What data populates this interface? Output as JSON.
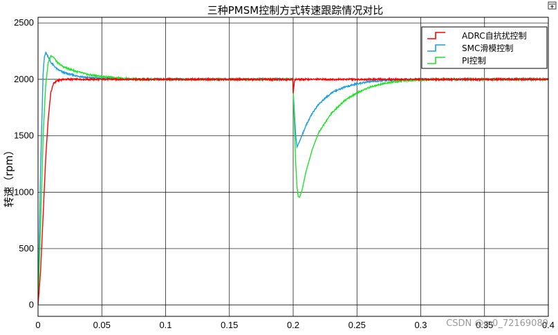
{
  "chart_data": {
    "type": "line",
    "title": "三种PMSM控制方式转速跟踪情况对比",
    "xlabel": "",
    "ylabel": "转速（rpm）",
    "xlim": [
      0,
      0.4
    ],
    "ylim": [
      -100,
      2550
    ],
    "xticks": [
      0,
      0.05,
      0.1,
      0.15,
      0.2,
      0.25,
      0.3,
      0.35,
      0.4
    ],
    "xtick_labels": [
      "0",
      "0.05",
      "0.1",
      "0.15",
      "0.2",
      "0.25",
      "0.3",
      "0.35",
      "0.4"
    ],
    "yticks": [
      0,
      500,
      1000,
      1500,
      2000,
      2500
    ],
    "ytick_labels": [
      "0",
      "500",
      "1000",
      "1500",
      "2000",
      "2500"
    ],
    "grid": true,
    "legend_position": "top-right",
    "series": [
      {
        "name": "ADRC自抗扰控制",
        "color": "#ff0000",
        "points": [
          [
            0,
            0
          ],
          [
            0.002,
            300
          ],
          [
            0.004,
            800
          ],
          [
            0.006,
            1300
          ],
          [
            0.008,
            1650
          ],
          [
            0.01,
            1880
          ],
          [
            0.012,
            1960
          ],
          [
            0.015,
            1990
          ],
          [
            0.02,
            2000
          ],
          [
            0.1999,
            2000
          ],
          [
            0.2,
            1870
          ],
          [
            0.2005,
            1940
          ],
          [
            0.201,
            1990
          ],
          [
            0.202,
            2000
          ],
          [
            0.4,
            2000
          ]
        ]
      },
      {
        "name": "SMC滑模控制",
        "color": "#1a9fe0",
        "points": [
          [
            0,
            0
          ],
          [
            0.002,
            1200
          ],
          [
            0.004,
            2050
          ],
          [
            0.005,
            2200
          ],
          [
            0.006,
            2240
          ],
          [
            0.008,
            2200
          ],
          [
            0.01,
            2150
          ],
          [
            0.015,
            2090
          ],
          [
            0.02,
            2060
          ],
          [
            0.03,
            2030
          ],
          [
            0.04,
            2015
          ],
          [
            0.05,
            2010
          ],
          [
            0.06,
            2005
          ],
          [
            0.07,
            2000
          ],
          [
            0.1999,
            2000
          ],
          [
            0.2,
            1900
          ],
          [
            0.201,
            1700
          ],
          [
            0.202,
            1500
          ],
          [
            0.203,
            1400
          ],
          [
            0.205,
            1450
          ],
          [
            0.21,
            1590
          ],
          [
            0.215,
            1700
          ],
          [
            0.22,
            1780
          ],
          [
            0.23,
            1880
          ],
          [
            0.24,
            1930
          ],
          [
            0.25,
            1960
          ],
          [
            0.26,
            1980
          ],
          [
            0.27,
            1990
          ],
          [
            0.28,
            1995
          ],
          [
            0.29,
            2000
          ],
          [
            0.4,
            2000
          ]
        ]
      },
      {
        "name": "PI控制",
        "color": "#22e12a",
        "points": [
          [
            0,
            0
          ],
          [
            0.002,
            700
          ],
          [
            0.004,
            1500
          ],
          [
            0.006,
            1950
          ],
          [
            0.008,
            2150
          ],
          [
            0.01,
            2210
          ],
          [
            0.012,
            2200
          ],
          [
            0.015,
            2150
          ],
          [
            0.02,
            2110
          ],
          [
            0.03,
            2070
          ],
          [
            0.04,
            2040
          ],
          [
            0.05,
            2025
          ],
          [
            0.06,
            2015
          ],
          [
            0.07,
            2005
          ],
          [
            0.08,
            2000
          ],
          [
            0.1999,
            2000
          ],
          [
            0.2,
            1900
          ],
          [
            0.201,
            1600
          ],
          [
            0.202,
            1250
          ],
          [
            0.203,
            1050
          ],
          [
            0.204,
            960
          ],
          [
            0.205,
            955
          ],
          [
            0.207,
            1020
          ],
          [
            0.21,
            1180
          ],
          [
            0.215,
            1380
          ],
          [
            0.22,
            1530
          ],
          [
            0.23,
            1700
          ],
          [
            0.24,
            1810
          ],
          [
            0.25,
            1880
          ],
          [
            0.26,
            1930
          ],
          [
            0.27,
            1960
          ],
          [
            0.28,
            1980
          ],
          [
            0.29,
            1990
          ],
          [
            0.3,
            1995
          ],
          [
            0.31,
            2000
          ],
          [
            0.4,
            2000
          ]
        ]
      }
    ]
  },
  "watermark": "CSDN @m0_72169089",
  "export_icon": "export-icon"
}
